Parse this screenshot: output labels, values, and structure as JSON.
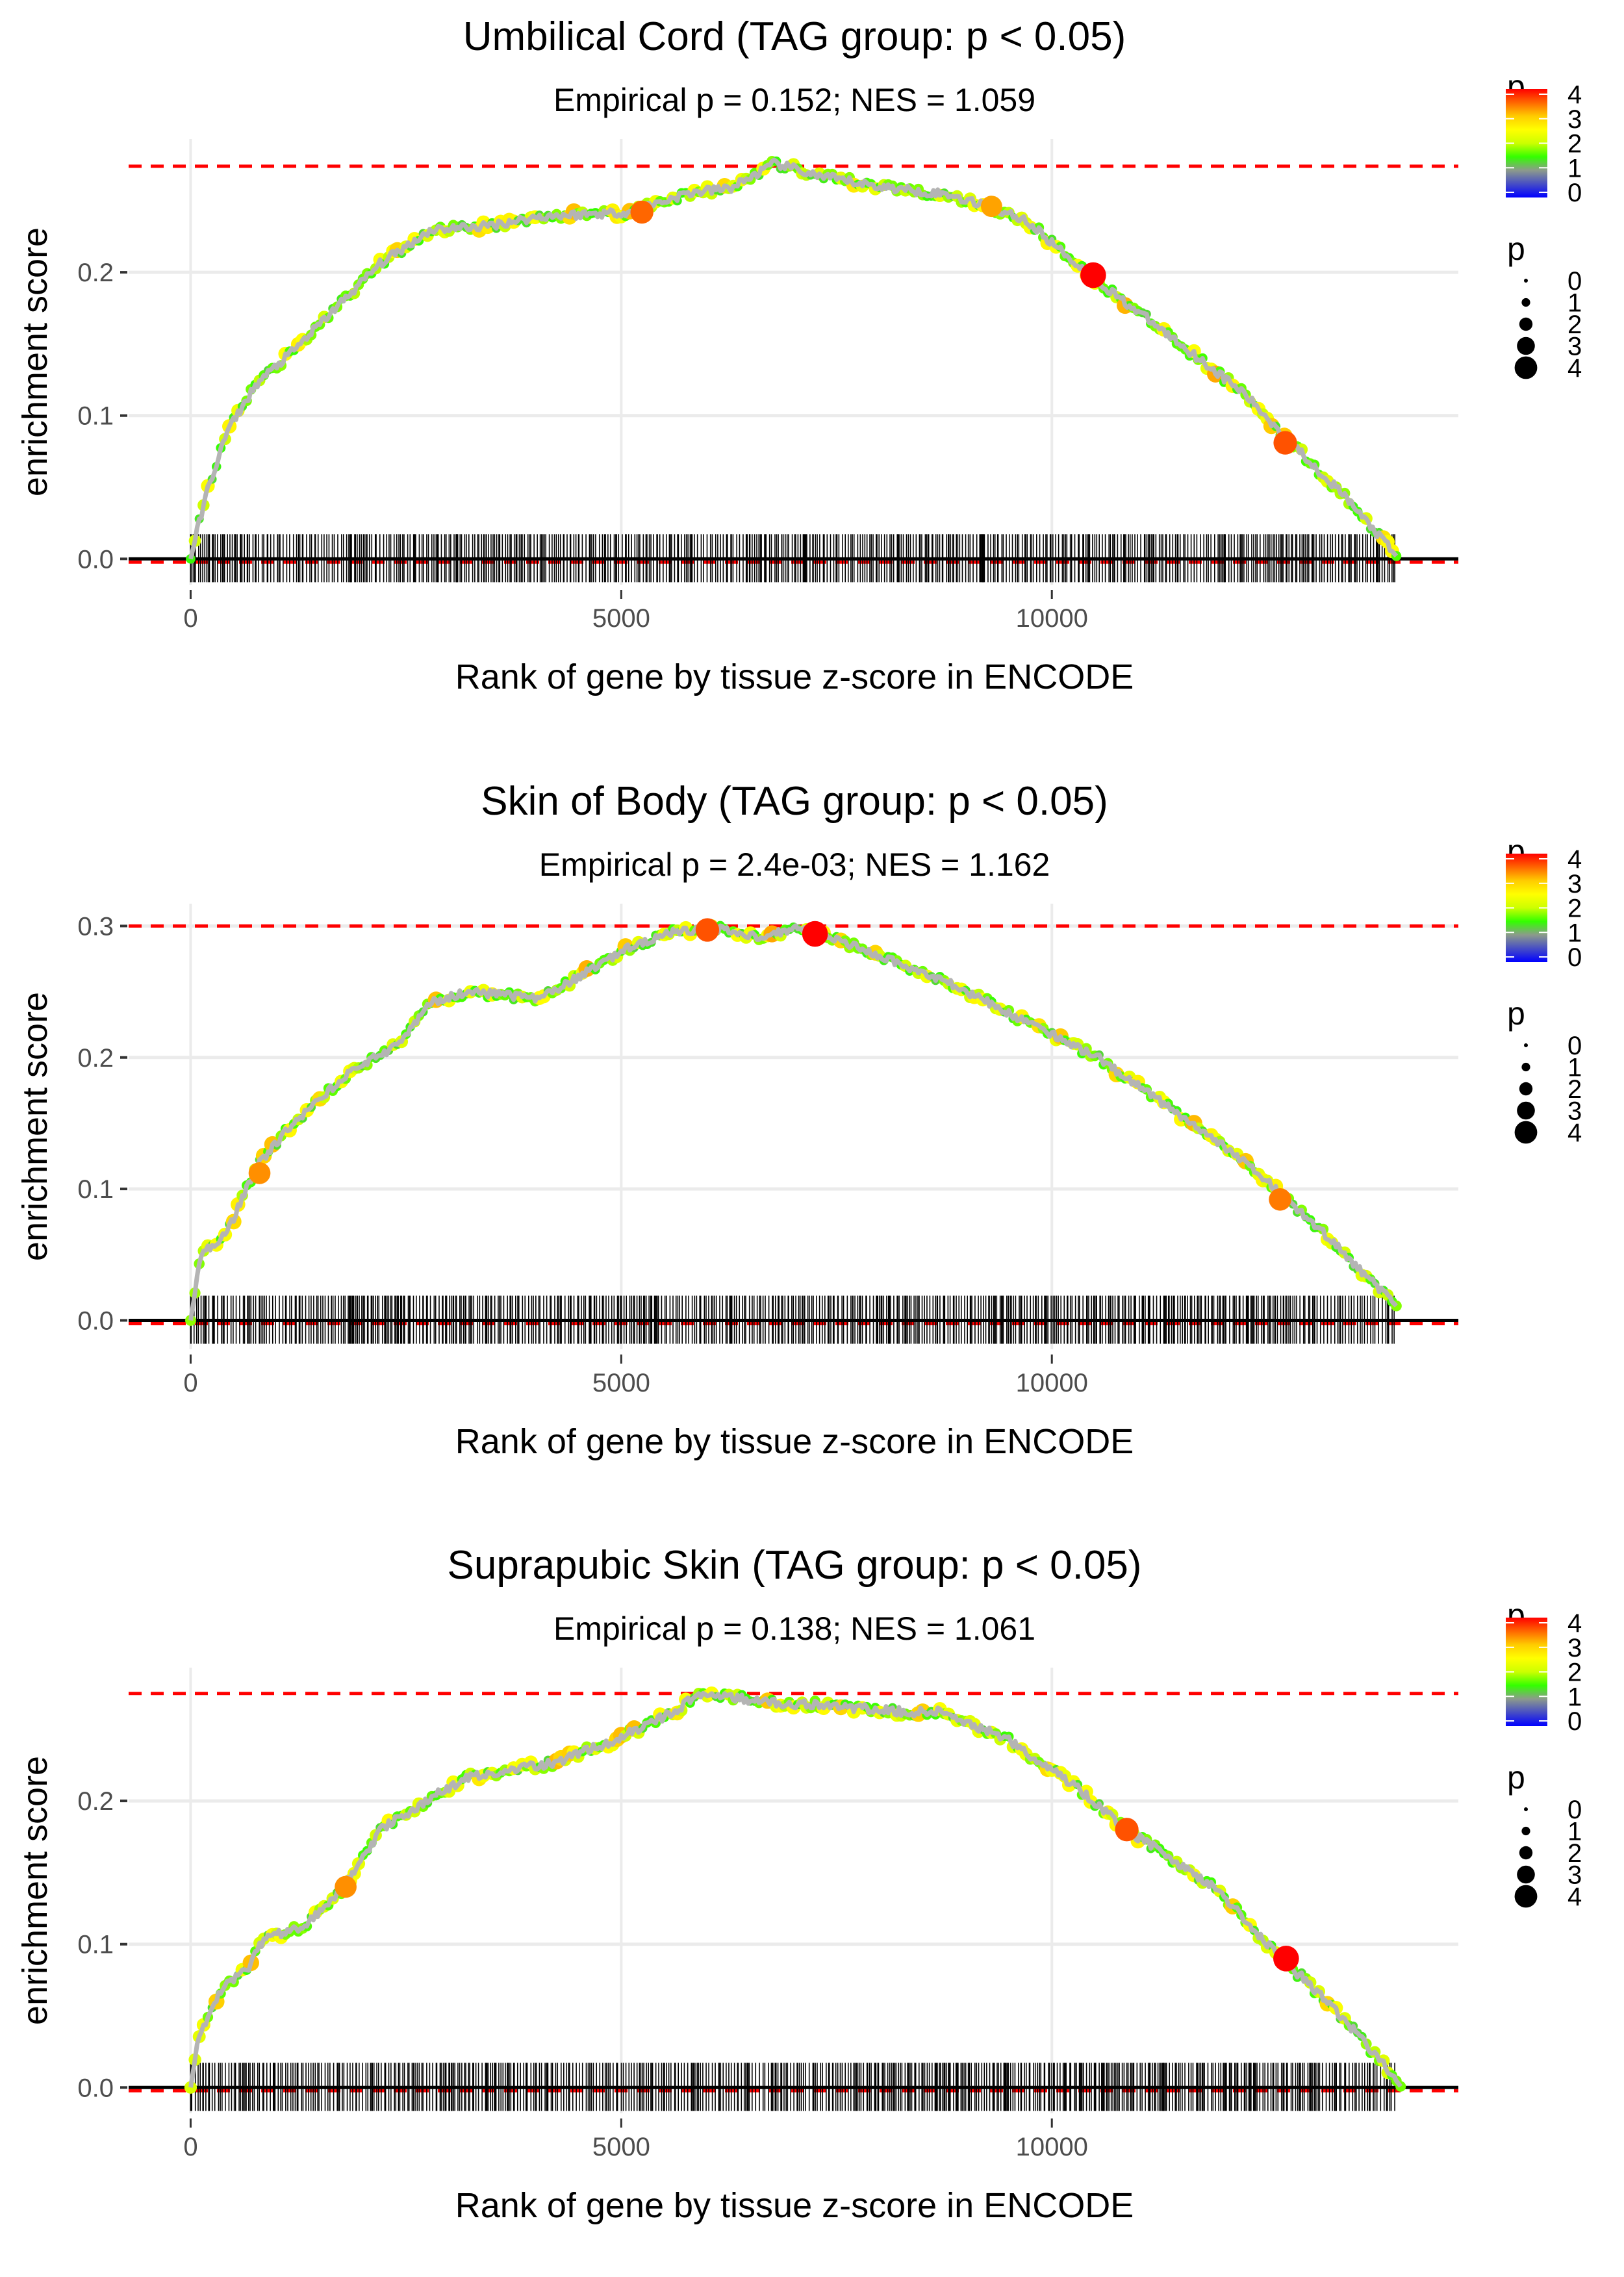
{
  "chart_data": [
    {
      "type": "line",
      "title": "Umbilical Cord (TAG group: p < 0.05)",
      "subtitle": "Empirical p = 0.152; NES = 1.059",
      "xlabel": "Rank of gene by tissue z-score in ENCODE",
      "ylabel": "enrichment score",
      "xlim": [
        -720,
        14720
      ],
      "ylim": [
        -0.018,
        0.293
      ],
      "xticks": [
        0,
        5000,
        10000
      ],
      "xtick_labels": [
        "0",
        "5000",
        "10000"
      ],
      "yticks": [
        0.0,
        0.1,
        0.2
      ],
      "ytick_labels": [
        "0.0",
        "0.1",
        "0.2"
      ],
      "max_es": 0.274,
      "curve": [
        [
          0,
          0
        ],
        [
          170,
          0.043
        ],
        [
          425,
          0.089
        ],
        [
          764,
          0.122
        ],
        [
          1190,
          0.145
        ],
        [
          1700,
          0.176
        ],
        [
          2200,
          0.206
        ],
        [
          2800,
          0.23
        ],
        [
          3400,
          0.232
        ],
        [
          4070,
          0.239
        ],
        [
          5090,
          0.242
        ],
        [
          5770,
          0.255
        ],
        [
          6280,
          0.259
        ],
        [
          6790,
          0.276
        ],
        [
          7300,
          0.267
        ],
        [
          7980,
          0.26
        ],
        [
          8830,
          0.254
        ],
        [
          9680,
          0.237
        ],
        [
          10440,
          0.198
        ],
        [
          11380,
          0.155
        ],
        [
          12220,
          0.116
        ],
        [
          12730,
          0.084
        ],
        [
          13410,
          0.043
        ],
        [
          14000,
          0.002
        ]
      ],
      "highlight_points": [
        {
          "x": 5240,
          "y": 0.242,
          "p": 3.5
        },
        {
          "x": 9300,
          "y": 0.246,
          "p": 3.2
        },
        {
          "x": 10480,
          "y": 0.198,
          "p": 4
        },
        {
          "x": 12710,
          "y": 0.081,
          "p": 3.6
        }
      ],
      "rug_end": 14000
    },
    {
      "type": "line",
      "title": "Skin of Body (TAG group: p < 0.05)",
      "subtitle": "Empirical p = 2.4e-03; NES = 1.162",
      "xlabel": "Rank of gene by tissue z-score in ENCODE",
      "ylabel": "enrichment score",
      "xlim": [
        -720,
        14720
      ],
      "ylim": [
        -0.022,
        0.317
      ],
      "xticks": [
        0,
        5000,
        10000
      ],
      "xtick_labels": [
        "0",
        "5000",
        "10000"
      ],
      "yticks": [
        0.0,
        0.1,
        0.2,
        0.3
      ],
      "ytick_labels": [
        "0.0",
        "0.1",
        "0.2",
        "0.3"
      ],
      "max_es": 0.3,
      "curve": [
        [
          0,
          0
        ],
        [
          120,
          0.05
        ],
        [
          425,
          0.067
        ],
        [
          764,
          0.117
        ],
        [
          1190,
          0.15
        ],
        [
          1870,
          0.19
        ],
        [
          2380,
          0.208
        ],
        [
          2800,
          0.242
        ],
        [
          3230,
          0.25
        ],
        [
          4070,
          0.245
        ],
        [
          4580,
          0.264
        ],
        [
          5090,
          0.284
        ],
        [
          5600,
          0.295
        ],
        [
          6110,
          0.298
        ],
        [
          6620,
          0.292
        ],
        [
          7050,
          0.299
        ],
        [
          7980,
          0.278
        ],
        [
          8830,
          0.256
        ],
        [
          9680,
          0.228
        ],
        [
          10530,
          0.2
        ],
        [
          11380,
          0.161
        ],
        [
          12220,
          0.122
        ],
        [
          13070,
          0.072
        ],
        [
          14000,
          0.011
        ]
      ],
      "highlight_points": [
        {
          "x": 6000,
          "y": 0.297,
          "p": 3.6
        },
        {
          "x": 7250,
          "y": 0.294,
          "p": 4
        },
        {
          "x": 800,
          "y": 0.112,
          "p": 3.3
        },
        {
          "x": 12650,
          "y": 0.092,
          "p": 3.4
        }
      ],
      "rug_end": 14000
    },
    {
      "type": "line",
      "title": "Suprapubic Skin (TAG group: p < 0.05)",
      "subtitle": "Empirical p = 0.138; NES = 1.061",
      "xlabel": "Rank of gene by tissue z-score in ENCODE",
      "ylabel": "enrichment score",
      "xlim": [
        -720,
        14720
      ],
      "ylim": [
        -0.018,
        0.293
      ],
      "xticks": [
        0,
        5000,
        10000
      ],
      "xtick_labels": [
        "0",
        "5000",
        "10000"
      ],
      "yticks": [
        0.0,
        0.1,
        0.2
      ],
      "ytick_labels": [
        "0.0",
        "0.1",
        "0.2"
      ],
      "max_es": 0.275,
      "curve": [
        [
          0,
          0
        ],
        [
          85,
          0.033
        ],
        [
          340,
          0.068
        ],
        [
          680,
          0.084
        ],
        [
          850,
          0.104
        ],
        [
          1360,
          0.114
        ],
        [
          1780,
          0.14
        ],
        [
          2210,
          0.18
        ],
        [
          2890,
          0.206
        ],
        [
          3230,
          0.216
        ],
        [
          4240,
          0.227
        ],
        [
          4920,
          0.242
        ],
        [
          5600,
          0.262
        ],
        [
          5940,
          0.276
        ],
        [
          6620,
          0.269
        ],
        [
          7300,
          0.267
        ],
        [
          8320,
          0.262
        ],
        [
          8750,
          0.262
        ],
        [
          9510,
          0.242
        ],
        [
          10360,
          0.206
        ],
        [
          10870,
          0.18
        ],
        [
          11890,
          0.14
        ],
        [
          12650,
          0.091
        ],
        [
          13240,
          0.058
        ],
        [
          13840,
          0.017
        ],
        [
          14060,
          0
        ]
      ],
      "highlight_points": [
        {
          "x": 1800,
          "y": 0.14,
          "p": 3.3
        },
        {
          "x": 10870,
          "y": 0.18,
          "p": 3.6
        },
        {
          "x": 12720,
          "y": 0.09,
          "p": 4
        }
      ],
      "rug_end": 14000
    }
  ],
  "legend": {
    "color_title": "p",
    "color_labels": [
      "4",
      "3",
      "2",
      "1",
      "0"
    ],
    "color_stops": [
      "#0000ff",
      "#8c9a8c",
      "#33ff00",
      "#ccff00",
      "#ffff00",
      "#ffcc00",
      "#ff6600",
      "#ff0000"
    ],
    "size_title": "p",
    "size_labels": [
      "0",
      "1",
      "2",
      "3",
      "4"
    ]
  },
  "colors": {
    "max_line": "#ff0000",
    "curve_line": "#b4b4b4",
    "grid": "#ebebeb",
    "rug": "#000000"
  }
}
